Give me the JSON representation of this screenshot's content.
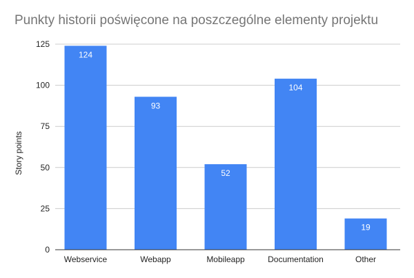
{
  "chart_data": {
    "type": "bar",
    "title": "Punkty historii poświęcone na poszczególne elementy projektu",
    "xlabel": "",
    "ylabel": "Story points",
    "categories": [
      "Webservice",
      "Webapp",
      "Mobileapp",
      "Documentation",
      "Other"
    ],
    "values": [
      124,
      93,
      52,
      104,
      19
    ],
    "ylim": [
      0,
      125
    ],
    "yticks": [
      0,
      25,
      50,
      75,
      100,
      125
    ],
    "grid": true,
    "legend": "none",
    "data_labels": true,
    "bar_color": "#4285f4"
  }
}
